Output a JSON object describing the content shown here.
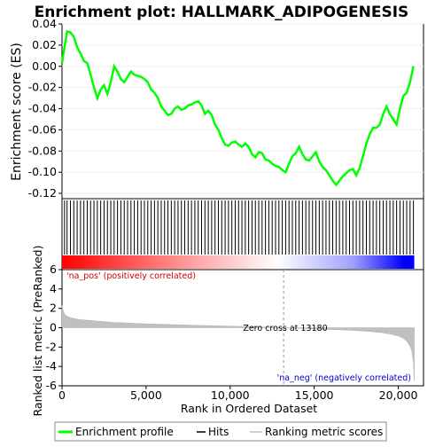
{
  "chart_data": {
    "type": "line",
    "title": "Enrichment plot: HALLMARK_ADIPOGENESIS",
    "top_panel": {
      "ylabel": "Enrichment score (ES)",
      "ylim": [
        -0.125,
        0.04
      ],
      "yticks": [
        "0.04",
        "0.02",
        "0.00",
        "-0.02",
        "-0.04",
        "-0.06",
        "-0.08",
        "-0.10",
        "-0.12"
      ],
      "tick_values": [
        0.04,
        0.02,
        0.0,
        -0.02,
        -0.04,
        -0.06,
        -0.08,
        -0.1,
        -0.12
      ],
      "series": [
        {
          "name": "Enrichment profile",
          "color": "#00ff00",
          "x": [
            0,
            150,
            300,
            500,
            700,
            900,
            1100,
            1300,
            1500,
            1700,
            1900,
            2100,
            2300,
            2500,
            2700,
            2900,
            3100,
            3300,
            3500,
            3700,
            3900,
            4100,
            4300,
            4500,
            4700,
            4900,
            5100,
            5300,
            5500,
            5700,
            5900,
            6100,
            6300,
            6500,
            6700,
            6900,
            7100,
            7300,
            7500,
            7700,
            7900,
            8100,
            8300,
            8500,
            8700,
            8900,
            9100,
            9300,
            9500,
            9700,
            9900,
            10100,
            10300,
            10500,
            10700,
            10900,
            11100,
            11300,
            11500,
            11700,
            11900,
            12100,
            12300,
            12500,
            12700,
            12900,
            13100,
            13300,
            13500,
            13700,
            13900,
            14100,
            14300,
            14500,
            14700,
            14900,
            15100,
            15300,
            15500,
            15700,
            15900,
            16100,
            16300,
            16500,
            16700,
            16900,
            17100,
            17300,
            17500,
            17700,
            17900,
            18100,
            18300,
            18500,
            18700,
            18900,
            19100,
            19300,
            19500,
            19700,
            19900,
            20100,
            20300,
            20500,
            20700,
            20900
          ],
          "values": [
            0.003,
            0.018,
            0.033,
            0.032,
            0.028,
            0.018,
            0.012,
            0.005,
            0.003,
            -0.008,
            -0.02,
            -0.03,
            -0.022,
            -0.018,
            -0.026,
            -0.015,
            0.0,
            -0.005,
            -0.012,
            -0.015,
            -0.01,
            -0.005,
            -0.008,
            -0.009,
            -0.01,
            -0.012,
            -0.015,
            -0.022,
            -0.025,
            -0.03,
            -0.038,
            -0.042,
            -0.046,
            -0.045,
            -0.04,
            -0.038,
            -0.041,
            -0.04,
            -0.037,
            -0.036,
            -0.034,
            -0.033,
            -0.037,
            -0.045,
            -0.042,
            -0.046,
            -0.055,
            -0.06,
            -0.068,
            -0.074,
            -0.075,
            -0.072,
            -0.071,
            -0.074,
            -0.076,
            -0.073,
            -0.076,
            -0.083,
            -0.086,
            -0.081,
            -0.082,
            -0.088,
            -0.089,
            -0.092,
            -0.094,
            -0.095,
            -0.098,
            -0.1,
            -0.092,
            -0.085,
            -0.082,
            -0.076,
            -0.083,
            -0.088,
            -0.089,
            -0.085,
            -0.081,
            -0.09,
            -0.095,
            -0.098,
            -0.103,
            -0.108,
            -0.112,
            -0.108,
            -0.104,
            -0.101,
            -0.098,
            -0.097,
            -0.103,
            -0.096,
            -0.085,
            -0.073,
            -0.064,
            -0.058,
            -0.058,
            -0.055,
            -0.045,
            -0.038,
            -0.045,
            -0.05,
            -0.055,
            -0.04,
            -0.028,
            -0.025,
            -0.015,
            0.0
          ]
        }
      ]
    },
    "hits_panel": {
      "legend_label": "Hits",
      "gradient_stops": [
        "#ff0000",
        "#ffa0a0",
        "#ffffff",
        "#a0a0ff",
        "#0000ff"
      ]
    },
    "bottom_panel": {
      "ylabel": "Ranked list metric (PreRanked)",
      "xlabel": "Rank in Ordered Dataset",
      "ylim": [
        -6,
        6
      ],
      "yticks": [
        "6",
        "4",
        "2",
        "0",
        "-2",
        "-4",
        "-6"
      ],
      "tick_values": [
        6,
        4,
        2,
        0,
        -2,
        -4,
        -6
      ],
      "xlim": [
        0,
        21500
      ],
      "xticks": [
        "0",
        "5,000",
        "10,000",
        "15,000",
        "20,000"
      ],
      "xtick_values": [
        0,
        5000,
        10000,
        15000,
        20000
      ],
      "metric_x": [
        0,
        50,
        100,
        200,
        400,
        700,
        1000,
        2000,
        3000,
        5000,
        8000,
        11000,
        13180,
        15000,
        17000,
        18000,
        19000,
        19500,
        20000,
        20300,
        20500,
        20700,
        20800,
        20900,
        20950
      ],
      "metric_values": [
        2.3,
        1.9,
        1.6,
        1.3,
        1.1,
        0.95,
        0.85,
        0.7,
        0.55,
        0.4,
        0.25,
        0.12,
        0.0,
        -0.12,
        -0.25,
        -0.35,
        -0.5,
        -0.65,
        -0.85,
        -1.1,
        -1.4,
        -1.9,
        -2.4,
        -3.5,
        -5.5
      ],
      "annotations": {
        "pos_label": "'na_pos' (positively correlated)",
        "neg_label": "'na_neg' (negatively correlated)",
        "zero_cross": "Zero cross at 13180",
        "zero_cross_x": 13180
      }
    },
    "legend": {
      "entries": [
        "Enrichment profile",
        "Hits",
        "Ranking metric scores"
      ],
      "colors": [
        "#00ff00",
        "#000000",
        "#c0c0c0"
      ],
      "placement": "bottom"
    }
  }
}
